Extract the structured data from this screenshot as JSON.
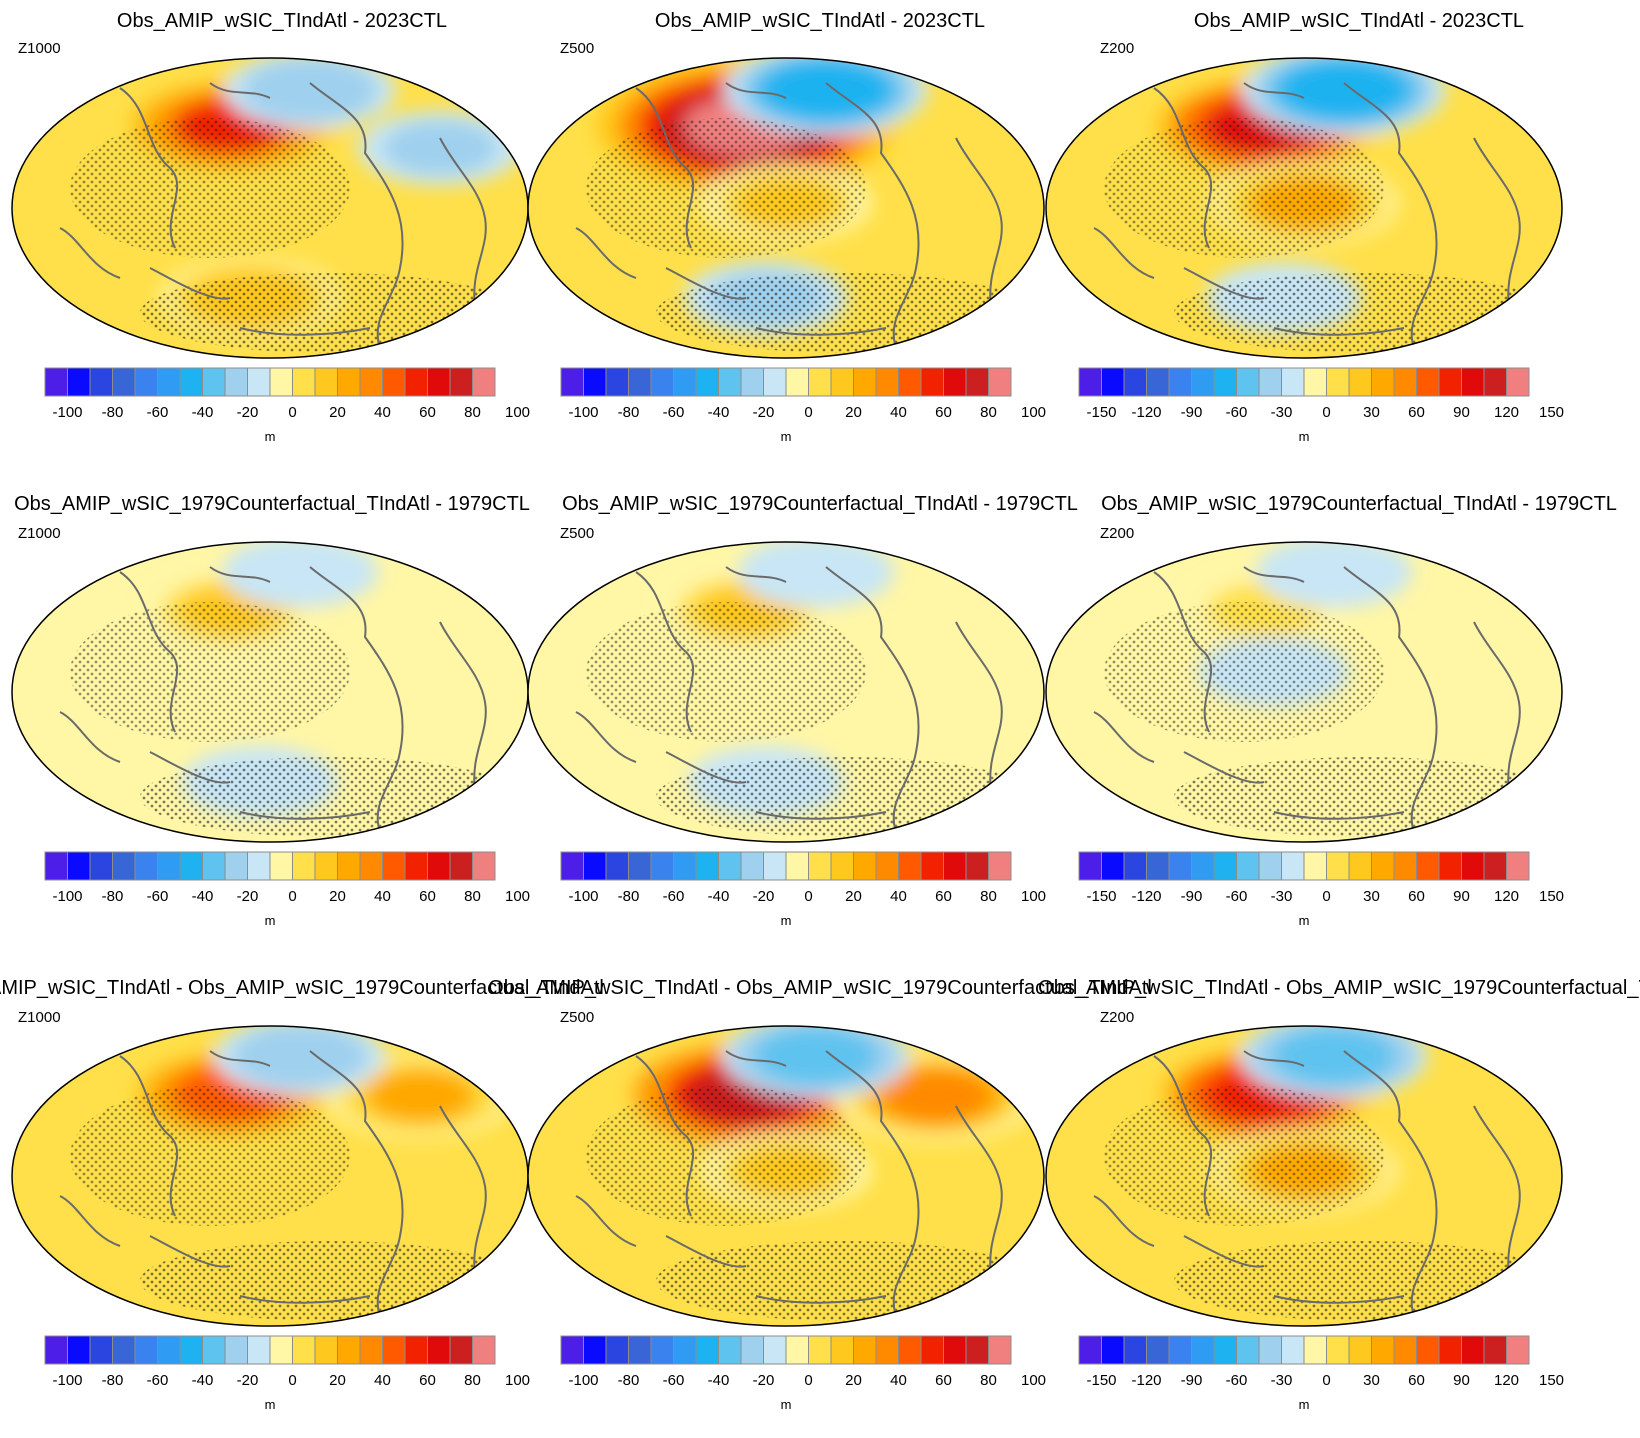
{
  "figure": {
    "unit_label": "m",
    "level_names": [
      "Z1000",
      "Z500",
      "Z200"
    ],
    "row_titles": [
      "Obs_AMIP_wSIC_TIndAtl - 2023CTL",
      "Obs_AMIP_wSIC_1979Counterfactual_TIndAtl - 1979CTL",
      "Obs_AMIP_wSIC_TIndAtl - Obs_AMIP_wSIC_1979Counterfactual_TIndAtl"
    ]
  },
  "palette": [
    "#4c1ee8",
    "#0a0aff",
    "#2a45e0",
    "#3866d6",
    "#3a82ee",
    "#2f9bf2",
    "#1eb2f0",
    "#5ec3ef",
    "#9fd0ee",
    "#c8e6f5",
    "#fff6a6",
    "#ffe04a",
    "#ffc81e",
    "#ffa800",
    "#ff8a00",
    "#ff5a00",
    "#f22200",
    "#e00a0a",
    "#cc1f1f",
    "#f08080"
  ],
  "chart_data": [
    {
      "type": "heatmap",
      "row": 0,
      "col": 0,
      "title": "Obs_AMIP_wSIC_TIndAtl - 2023CTL",
      "level": "Z1000",
      "projection": "Robinson (Pacific-centred)",
      "units": "m",
      "colorbar": {
        "levels": [
          -100,
          -90,
          -80,
          -70,
          -60,
          -50,
          -40,
          -30,
          -20,
          -10,
          0,
          10,
          20,
          30,
          40,
          50,
          60,
          70,
          80,
          90,
          100
        ],
        "tick_labels": [
          "-100",
          "-80",
          "-60",
          "-40",
          "-20",
          "0",
          "20",
          "40",
          "60",
          "80",
          "100"
        ]
      },
      "features": [
        {
          "region": "North Pacific",
          "sign": "positive",
          "peak_m": 60
        },
        {
          "region": "Eurasia/Arctic",
          "sign": "negative",
          "peak_m": -20
        },
        {
          "region": "North Atlantic",
          "sign": "negative",
          "peak_m": -15
        },
        {
          "region": "Southern Ocean",
          "sign": "positive",
          "peak_m": 25
        }
      ]
    },
    {
      "type": "heatmap",
      "row": 0,
      "col": 1,
      "title": "Obs_AMIP_wSIC_TIndAtl - 2023CTL",
      "level": "Z500",
      "projection": "Robinson (Pacific-centred)",
      "units": "m",
      "colorbar": {
        "levels": [
          -100,
          -90,
          -80,
          -70,
          -60,
          -50,
          -40,
          -30,
          -20,
          -10,
          0,
          10,
          20,
          30,
          40,
          50,
          60,
          70,
          80,
          90,
          100
        ],
        "tick_labels": [
          "-100",
          "-80",
          "-60",
          "-40",
          "-20",
          "0",
          "20",
          "40",
          "60",
          "80",
          "100"
        ]
      },
      "features": [
        {
          "region": "North Pacific",
          "sign": "positive",
          "peak_m": 100
        },
        {
          "region": "Siberia/Arctic",
          "sign": "negative",
          "peak_m": -40
        },
        {
          "region": "Tropics",
          "sign": "positive",
          "peak_m": 20
        },
        {
          "region": "Southern Ocean",
          "sign": "negative",
          "peak_m": -15
        }
      ]
    },
    {
      "type": "heatmap",
      "row": 0,
      "col": 2,
      "title": "Obs_AMIP_wSIC_TIndAtl - 2023CTL",
      "level": "Z200",
      "projection": "Robinson (Pacific-centred)",
      "units": "m",
      "colorbar": {
        "levels": [
          -150,
          -135,
          -120,
          -105,
          -90,
          -75,
          -60,
          -45,
          -30,
          -15,
          0,
          15,
          30,
          45,
          60,
          75,
          90,
          105,
          120,
          135,
          150
        ],
        "tick_labels": [
          "-150",
          "-120",
          "-90",
          "-60",
          "-30",
          "0",
          "30",
          "60",
          "90",
          "120",
          "150"
        ]
      },
      "features": [
        {
          "region": "North Pacific",
          "sign": "positive",
          "peak_m": 110
        },
        {
          "region": "Siberia/Arctic",
          "sign": "negative",
          "peak_m": -60
        },
        {
          "region": "Tropics",
          "sign": "positive",
          "peak_m": 45
        },
        {
          "region": "Southern Ocean",
          "sign": "negative",
          "peak_m": -15
        }
      ]
    },
    {
      "type": "heatmap",
      "row": 1,
      "col": 0,
      "title": "Obs_AMIP_wSIC_1979Counterfactual_TIndAtl - 1979CTL",
      "level": "Z1000",
      "projection": "Robinson (Pacific-centred)",
      "units": "m",
      "colorbar": {
        "levels": [
          -100,
          -90,
          -80,
          -70,
          -60,
          -50,
          -40,
          -30,
          -20,
          -10,
          0,
          10,
          20,
          30,
          40,
          50,
          60,
          70,
          80,
          90,
          100
        ],
        "tick_labels": [
          "-100",
          "-80",
          "-60",
          "-40",
          "-20",
          "0",
          "20",
          "40",
          "60",
          "80",
          "100"
        ]
      },
      "features": [
        {
          "region": "North Pacific",
          "sign": "positive",
          "peak_m": 20
        },
        {
          "region": "Arctic",
          "sign": "negative",
          "peak_m": -10
        },
        {
          "region": "South Pacific",
          "sign": "negative",
          "peak_m": -10
        }
      ]
    },
    {
      "type": "heatmap",
      "row": 1,
      "col": 1,
      "title": "Obs_AMIP_wSIC_1979Counterfactual_TIndAtl - 1979CTL",
      "level": "Z500",
      "projection": "Robinson (Pacific-centred)",
      "units": "m",
      "colorbar": {
        "levels": [
          -100,
          -90,
          -80,
          -70,
          -60,
          -50,
          -40,
          -30,
          -20,
          -10,
          0,
          10,
          20,
          30,
          40,
          50,
          60,
          70,
          80,
          90,
          100
        ],
        "tick_labels": [
          "-100",
          "-80",
          "-60",
          "-40",
          "-20",
          "0",
          "20",
          "40",
          "60",
          "80",
          "100"
        ]
      },
      "features": [
        {
          "region": "North Pacific",
          "sign": "positive",
          "peak_m": 20
        },
        {
          "region": "Arctic",
          "sign": "negative",
          "peak_m": -10
        },
        {
          "region": "Southern Ocean",
          "sign": "negative",
          "peak_m": -10
        }
      ]
    },
    {
      "type": "heatmap",
      "row": 1,
      "col": 2,
      "title": "Obs_AMIP_wSIC_1979Counterfactual_TIndAtl - 1979CTL",
      "level": "Z200",
      "projection": "Robinson (Pacific-centred)",
      "units": "m",
      "colorbar": {
        "levels": [
          -150,
          -135,
          -120,
          -105,
          -90,
          -75,
          -60,
          -45,
          -30,
          -15,
          0,
          15,
          30,
          45,
          60,
          75,
          90,
          105,
          120,
          135,
          150
        ],
        "tick_labels": [
          "-150",
          "-120",
          "-90",
          "-60",
          "-30",
          "0",
          "30",
          "60",
          "90",
          "120",
          "150"
        ]
      },
      "features": [
        {
          "region": "North Pacific",
          "sign": "positive",
          "peak_m": 20
        },
        {
          "region": "Arctic",
          "sign": "negative",
          "peak_m": -15
        },
        {
          "region": "Tropical Pacific",
          "sign": "negative",
          "peak_m": -10
        }
      ]
    },
    {
      "type": "heatmap",
      "row": 2,
      "col": 0,
      "title": "Obs_AMIP_wSIC_TIndAtl - Obs_AMIP_wSIC_1979Counterfactual_TIndAtl",
      "level": "Z1000",
      "projection": "Robinson (Pacific-centred)",
      "units": "m",
      "colorbar": {
        "levels": [
          -100,
          -90,
          -80,
          -70,
          -60,
          -50,
          -40,
          -30,
          -20,
          -10,
          0,
          10,
          20,
          30,
          40,
          50,
          60,
          70,
          80,
          90,
          100
        ],
        "tick_labels": [
          "-100",
          "-80",
          "-60",
          "-40",
          "-20",
          "0",
          "20",
          "40",
          "60",
          "80",
          "100"
        ]
      },
      "features": [
        {
          "region": "North Pacific",
          "sign": "positive",
          "peak_m": 50
        },
        {
          "region": "North Atlantic/Europe",
          "sign": "positive",
          "peak_m": 30
        },
        {
          "region": "Arctic",
          "sign": "negative",
          "peak_m": -20
        }
      ]
    },
    {
      "type": "heatmap",
      "row": 2,
      "col": 1,
      "title": "Obs_AMIP_wSIC_TIndAtl - Obs_AMIP_wSIC_1979Counterfactual_TIndAtl",
      "level": "Z500",
      "projection": "Robinson (Pacific-centred)",
      "units": "m",
      "colorbar": {
        "levels": [
          -100,
          -90,
          -80,
          -70,
          -60,
          -50,
          -40,
          -30,
          -20,
          -10,
          0,
          10,
          20,
          30,
          40,
          50,
          60,
          70,
          80,
          90,
          100
        ],
        "tick_labels": [
          "-100",
          "-80",
          "-60",
          "-40",
          "-20",
          "0",
          "20",
          "40",
          "60",
          "80",
          "100"
        ]
      },
      "features": [
        {
          "region": "North Pacific",
          "sign": "positive",
          "peak_m": 80
        },
        {
          "region": "Europe",
          "sign": "positive",
          "peak_m": 40
        },
        {
          "region": "Arctic",
          "sign": "negative",
          "peak_m": -30
        },
        {
          "region": "Tropics",
          "sign": "positive",
          "peak_m": 20
        }
      ]
    },
    {
      "type": "heatmap",
      "row": 2,
      "col": 2,
      "title": "Obs_AMIP_wSIC_TIndAtl - Obs_AMIP_wSIC_1979Counterfactual_TIndAtl",
      "level": "Z200",
      "projection": "Robinson (Pacific-centred)",
      "units": "m",
      "colorbar": {
        "levels": [
          -150,
          -135,
          -120,
          -105,
          -90,
          -75,
          -60,
          -45,
          -30,
          -15,
          0,
          15,
          30,
          45,
          60,
          75,
          90,
          105,
          120,
          135,
          150
        ],
        "tick_labels": [
          "-150",
          "-120",
          "-90",
          "-60",
          "-30",
          "0",
          "30",
          "60",
          "90",
          "120",
          "150"
        ]
      },
      "features": [
        {
          "region": "North Pacific",
          "sign": "positive",
          "peak_m": 100
        },
        {
          "region": "Arctic",
          "sign": "negative",
          "peak_m": -45
        },
        {
          "region": "Tropics",
          "sign": "positive",
          "peak_m": 45
        }
      ]
    }
  ]
}
